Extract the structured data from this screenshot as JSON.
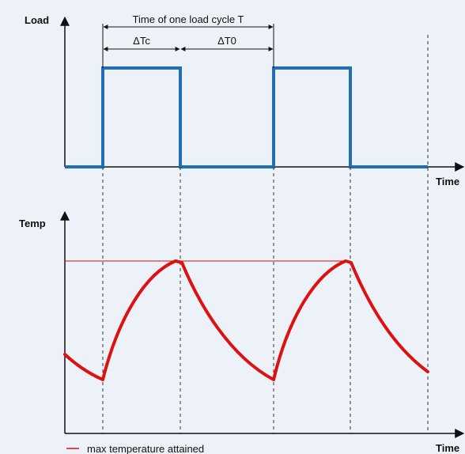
{
  "top_panel": {
    "y_label": "Load",
    "x_label": "Time",
    "bracket_label": "Time of one load cycle T",
    "delta_tc": "ΔTc",
    "delta_t0": "ΔT0"
  },
  "bottom_panel": {
    "y_label": "Temp",
    "x_label": "Time"
  },
  "legend": {
    "label": "max temperature attained",
    "color": "#cc1111"
  },
  "colors": {
    "load": "#1f6fb8",
    "temperature": "#dd1111",
    "axes": "#111111"
  }
}
